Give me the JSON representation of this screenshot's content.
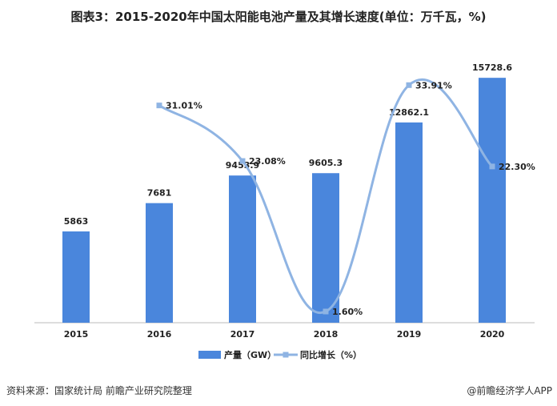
{
  "title": "图表3：2015-2020年中国太阳能电池产量及其增长速度(单位：万千瓦，%)",
  "source": "资料来源：国家统计局 前瞻产业研究院整理",
  "watermark": "@前瞻经济学人APP",
  "chart_data": {
    "type": "bar+line",
    "categories": [
      "2015",
      "2016",
      "2017",
      "2018",
      "2019",
      "2020"
    ],
    "series": [
      {
        "name": "产量（GW）",
        "type": "bar",
        "color": "#4a86dc",
        "values": [
          5863,
          7681,
          9453.9,
          9605.3,
          12862.1,
          15728.6
        ],
        "labels": [
          "5863",
          "7681",
          "9453.9",
          "9605.3",
          "12862.1",
          "15728.6"
        ],
        "ylim": [
          0,
          18000
        ]
      },
      {
        "name": "同比增长（%）",
        "type": "line",
        "smooth": true,
        "color": "#8fb4e3",
        "values": [
          null,
          31.01,
          23.08,
          1.6,
          33.91,
          22.3
        ],
        "labels": [
          "",
          "31.01%",
          "23.08%",
          "1.60%",
          "33.91%",
          "22.30%"
        ],
        "ylim": [
          0,
          40
        ]
      }
    ],
    "legend": "bottom",
    "grid": false
  }
}
